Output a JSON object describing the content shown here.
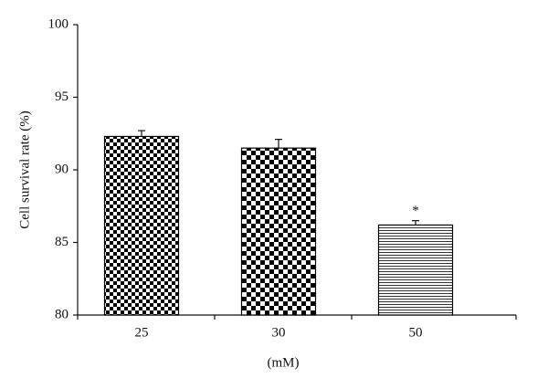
{
  "chart_data": {
    "type": "bar",
    "x_label": "(mM)",
    "y_label": "Cell survival rate (%)",
    "categories": [
      "25",
      "30",
      "50"
    ],
    "values": [
      92.3,
      91.5,
      86.2
    ],
    "errors": [
      0.4,
      0.6,
      0.3
    ],
    "annotations": [
      null,
      null,
      "*"
    ],
    "ylim": [
      80,
      100
    ],
    "yticks": [
      80,
      85,
      90,
      95,
      100
    ],
    "grid": false
  }
}
